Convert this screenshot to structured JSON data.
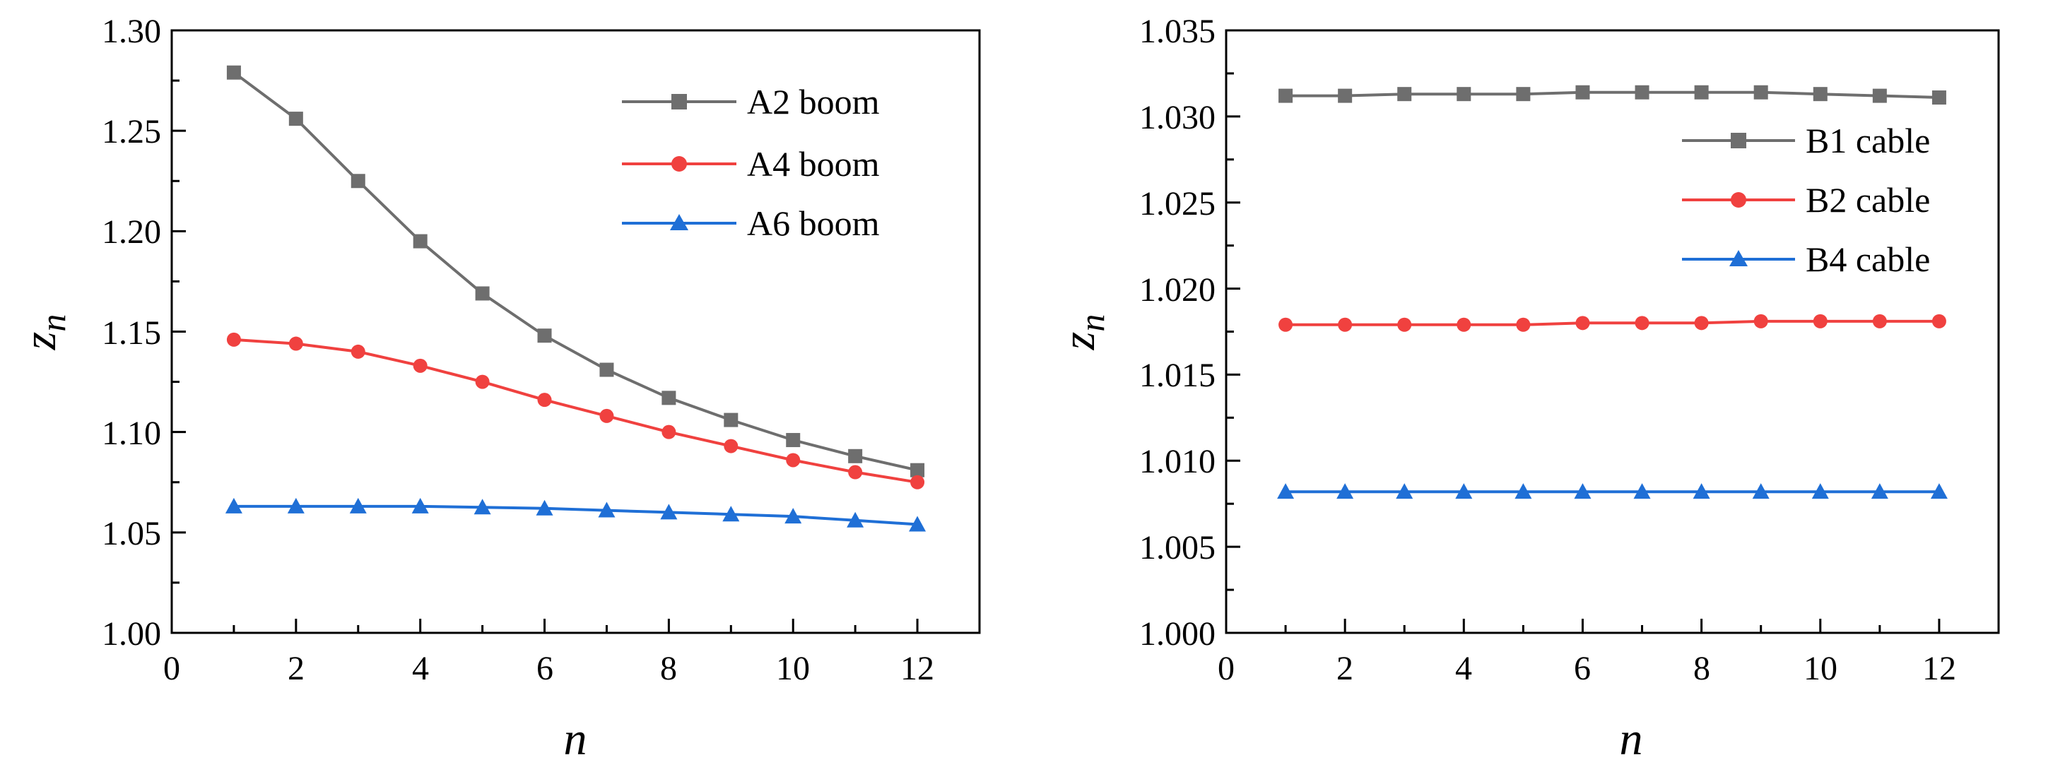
{
  "chart_data": [
    {
      "type": "line",
      "title": "",
      "xlabel": "n",
      "ylabel": "z",
      "ylabel_subscript": "n",
      "xlim": [
        0,
        13
      ],
      "ylim": [
        1.0,
        1.3
      ],
      "xticks": [
        0,
        2,
        4,
        6,
        8,
        10,
        12
      ],
      "xtick_labels": [
        "0",
        "2",
        "4",
        "6",
        "8",
        "10",
        "12"
      ],
      "yticks": [
        1.0,
        1.05,
        1.1,
        1.15,
        1.2,
        1.25,
        1.3
      ],
      "ytick_labels": [
        "1.00",
        "1.05",
        "1.10",
        "1.15",
        "1.20",
        "1.25",
        "1.30"
      ],
      "legend_position": "top-right",
      "x": [
        1,
        2,
        3,
        4,
        5,
        6,
        7,
        8,
        9,
        10,
        11,
        12
      ],
      "series": [
        {
          "name": "A2 boom",
          "color": "#6e6e6e",
          "marker": "square",
          "values": [
            1.279,
            1.256,
            1.225,
            1.195,
            1.169,
            1.148,
            1.131,
            1.117,
            1.106,
            1.096,
            1.088,
            1.081
          ]
        },
        {
          "name": "A4 boom",
          "color": "#f0413f",
          "marker": "circle",
          "values": [
            1.146,
            1.144,
            1.14,
            1.133,
            1.125,
            1.116,
            1.108,
            1.1,
            1.093,
            1.086,
            1.08,
            1.075
          ]
        },
        {
          "name": "A6 boom",
          "color": "#1f6fd6",
          "marker": "triangle",
          "values": [
            1.063,
            1.063,
            1.063,
            1.063,
            1.0625,
            1.062,
            1.061,
            1.06,
            1.059,
            1.058,
            1.056,
            1.054
          ]
        }
      ]
    },
    {
      "type": "line",
      "title": "",
      "xlabel": "n",
      "ylabel": "z",
      "ylabel_subscript": "n",
      "xlim": [
        0,
        13
      ],
      "ylim": [
        1.0,
        1.035
      ],
      "xticks": [
        0,
        2,
        4,
        6,
        8,
        10,
        12
      ],
      "xtick_labels": [
        "0",
        "2",
        "4",
        "6",
        "8",
        "10",
        "12"
      ],
      "yticks": [
        1.0,
        1.005,
        1.01,
        1.015,
        1.02,
        1.025,
        1.03,
        1.035
      ],
      "ytick_labels": [
        "1.000",
        "1.005",
        "1.010",
        "1.015",
        "1.020",
        "1.025",
        "1.030",
        "1.035"
      ],
      "legend_position": "top-right",
      "x": [
        1,
        2,
        3,
        4,
        5,
        6,
        7,
        8,
        9,
        10,
        11,
        12
      ],
      "series": [
        {
          "name": "B1 cable",
          "color": "#6e6e6e",
          "marker": "square",
          "values": [
            1.0312,
            1.0312,
            1.0313,
            1.0313,
            1.0313,
            1.0314,
            1.0314,
            1.0314,
            1.0314,
            1.0313,
            1.0312,
            1.0311
          ]
        },
        {
          "name": "B2 cable",
          "color": "#f0413f",
          "marker": "circle",
          "values": [
            1.0179,
            1.0179,
            1.0179,
            1.0179,
            1.0179,
            1.018,
            1.018,
            1.018,
            1.0181,
            1.0181,
            1.0181,
            1.0181
          ]
        },
        {
          "name": "B4 cable",
          "color": "#1f6fd6",
          "marker": "triangle",
          "values": [
            1.0082,
            1.0082,
            1.0082,
            1.0082,
            1.0082,
            1.0082,
            1.0082,
            1.0082,
            1.0082,
            1.0082,
            1.0082,
            1.0082
          ]
        }
      ]
    }
  ]
}
